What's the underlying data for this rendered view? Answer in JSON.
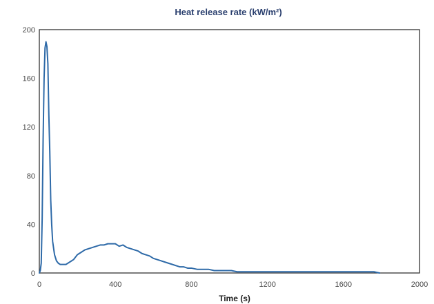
{
  "chart_data": {
    "type": "line",
    "title": "Heat release rate (kW/m²)",
    "xlabel": "Time (s)",
    "ylabel": "",
    "xlim": [
      0,
      2000
    ],
    "ylim": [
      0,
      200
    ],
    "xticks": [
      0,
      400,
      800,
      1200,
      1600,
      2000
    ],
    "yticks": [
      0,
      40,
      80,
      120,
      160,
      200
    ],
    "grid": false,
    "legend": "none",
    "series": [
      {
        "color": "#2e6aa8",
        "x": [
          0,
          5,
          10,
          15,
          20,
          25,
          30,
          35,
          40,
          45,
          50,
          55,
          60,
          65,
          70,
          80,
          90,
          100,
          110,
          120,
          140,
          160,
          180,
          200,
          220,
          240,
          260,
          280,
          300,
          320,
          340,
          360,
          380,
          400,
          420,
          440,
          460,
          480,
          500,
          520,
          540,
          560,
          580,
          600,
          620,
          640,
          660,
          680,
          700,
          720,
          740,
          760,
          780,
          800,
          830,
          860,
          890,
          920,
          950,
          980,
          1010,
          1040,
          1070,
          1100,
          1130,
          1160,
          1190,
          1220,
          1250,
          1280,
          1310,
          1340,
          1370,
          1400,
          1430,
          1460,
          1490,
          1520,
          1550,
          1580,
          1610,
          1640,
          1670,
          1700,
          1730,
          1760,
          1790
        ],
        "y": [
          0,
          2,
          8,
          45,
          110,
          160,
          185,
          190,
          186,
          172,
          130,
          100,
          60,
          40,
          26,
          15,
          10,
          8,
          7,
          7,
          7,
          9,
          11,
          15,
          17,
          19,
          20,
          21,
          22,
          23,
          23,
          24,
          24,
          24,
          22,
          23,
          21,
          20,
          19,
          18,
          16,
          15,
          14,
          12,
          11,
          10,
          9,
          8,
          7,
          6,
          5,
          5,
          4,
          4,
          3,
          3,
          3,
          2,
          2,
          2,
          2,
          1,
          1,
          1,
          1,
          1,
          1,
          1,
          1,
          1,
          1,
          1,
          1,
          1,
          1,
          1,
          1,
          1,
          1,
          1,
          1,
          1,
          1,
          1,
          1,
          1,
          0
        ]
      }
    ]
  }
}
